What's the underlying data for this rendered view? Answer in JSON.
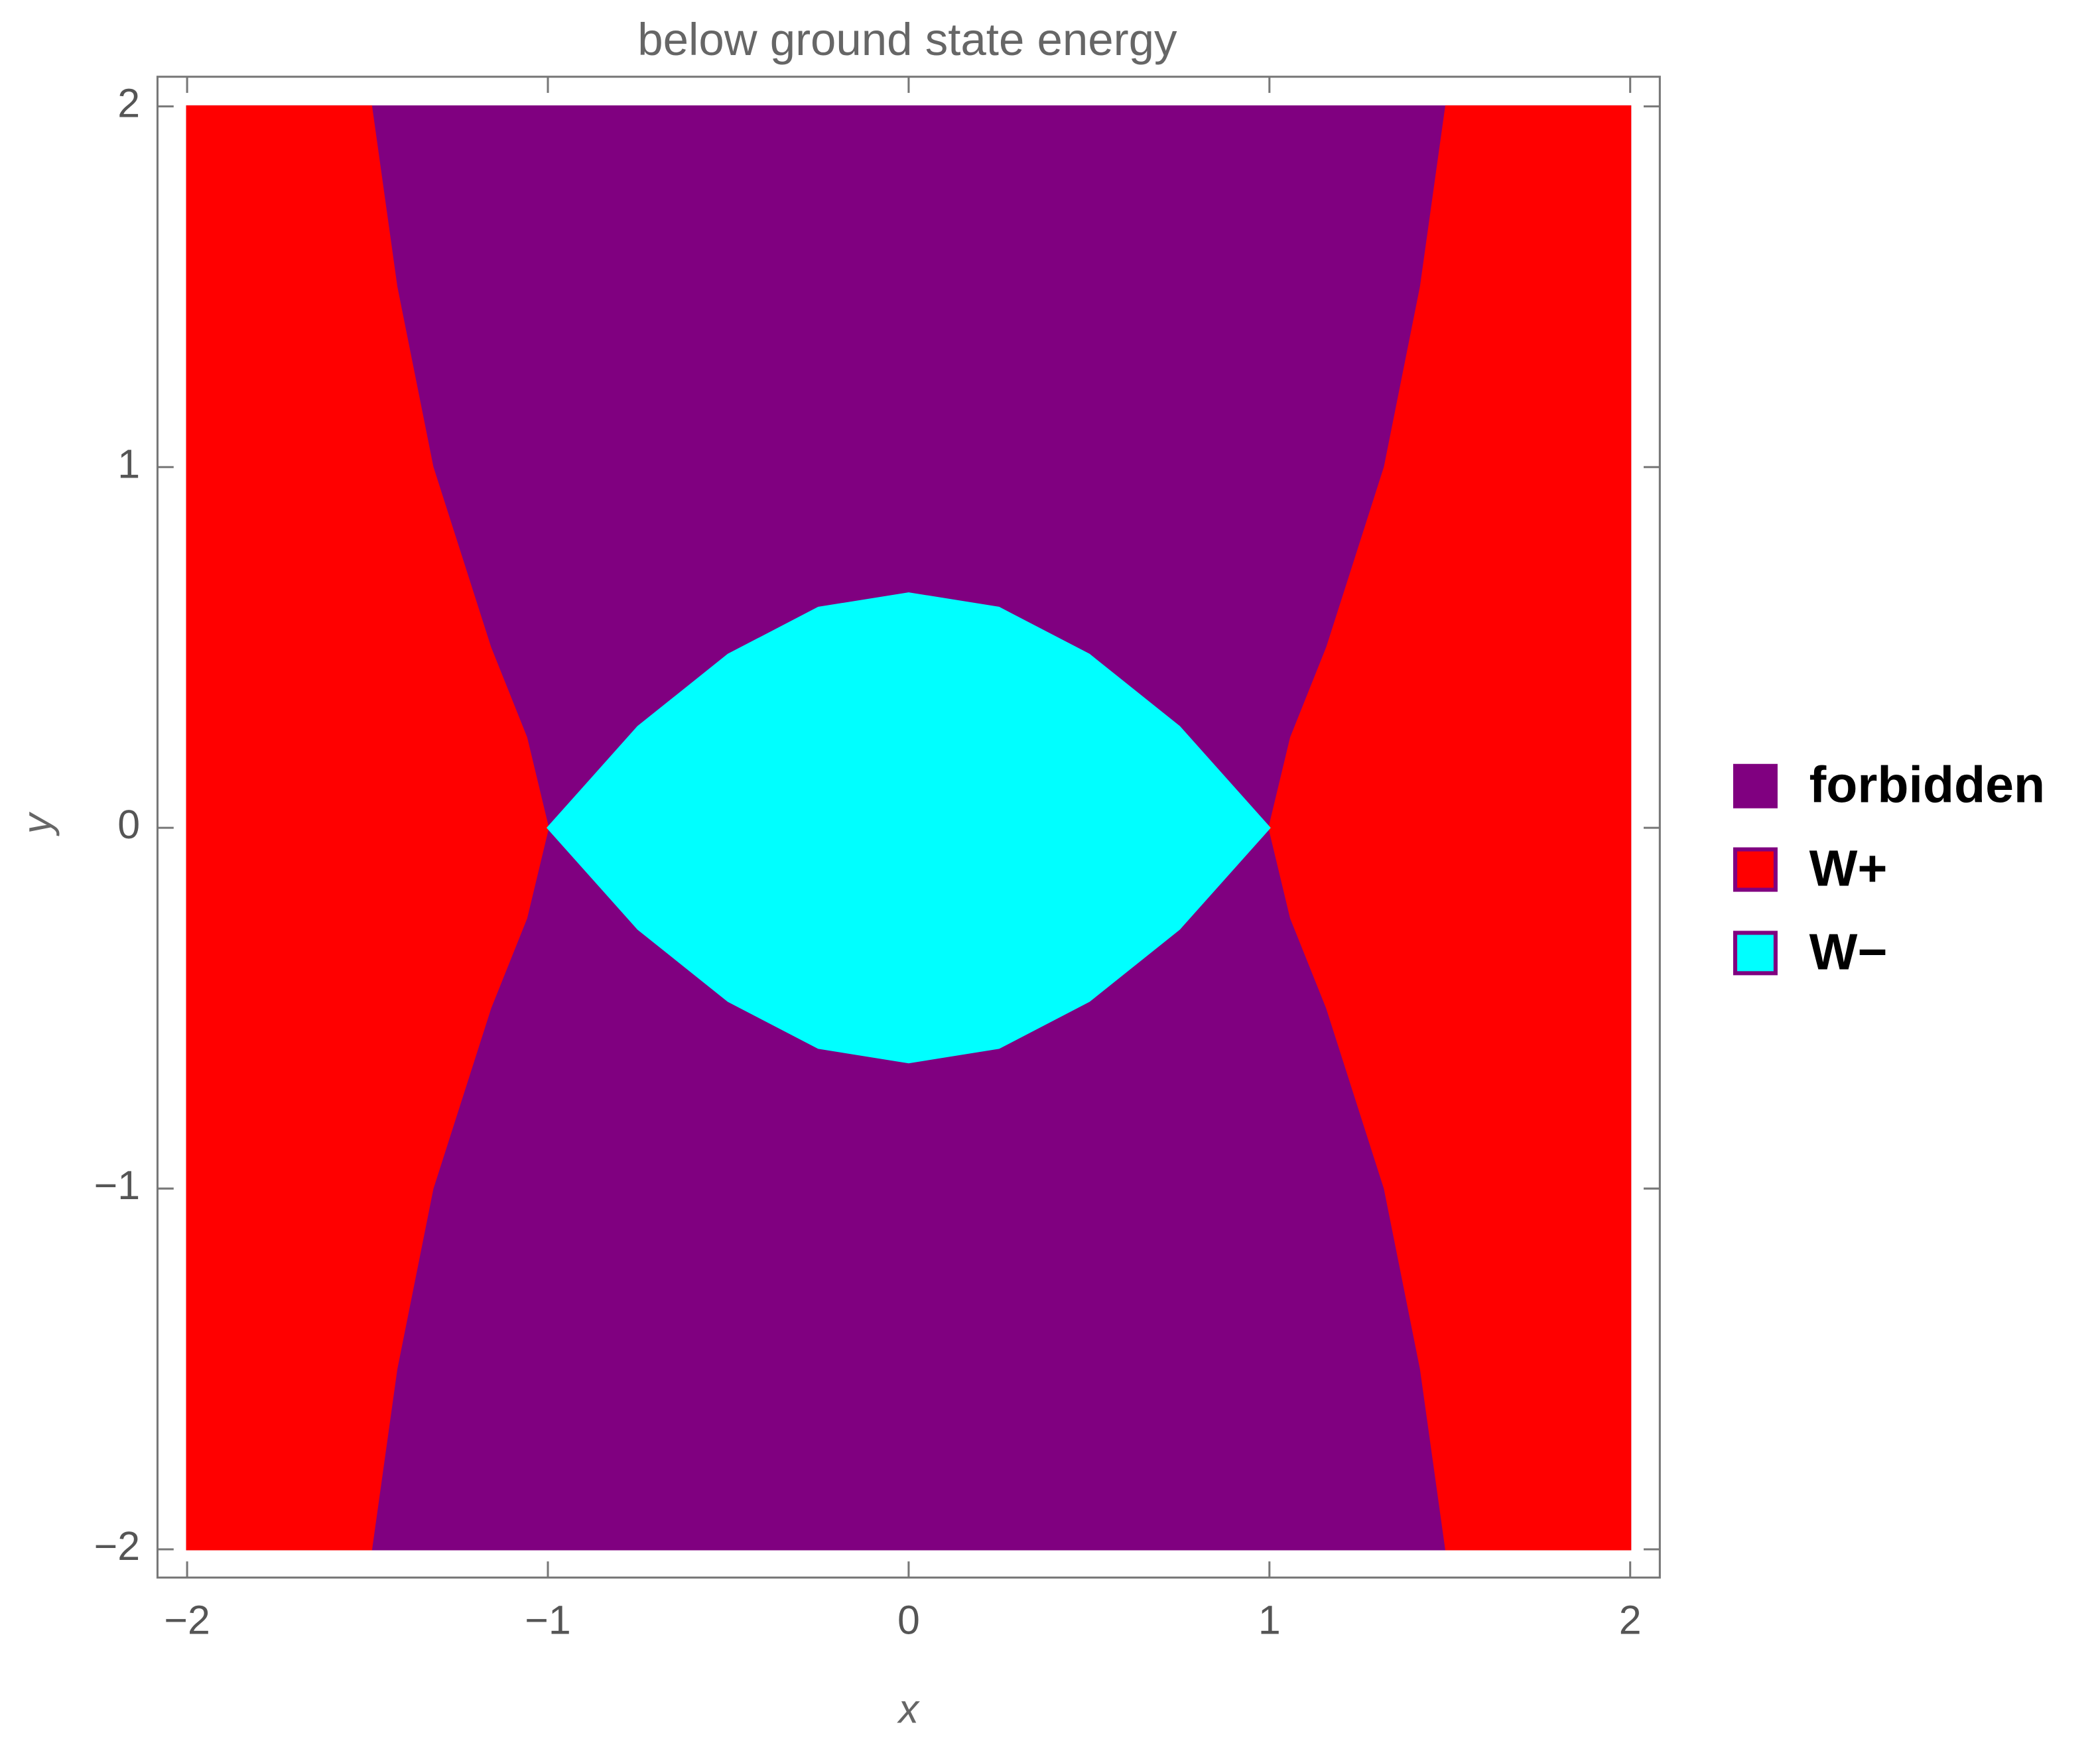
{
  "chart_data": {
    "type": "region",
    "title": "below ground state energy",
    "xlabel": "x",
    "ylabel": "y",
    "xlim": [
      -2,
      2
    ],
    "ylim": [
      -2,
      2
    ],
    "xticks": [
      {
        "value": -2,
        "label": "−2"
      },
      {
        "value": -1,
        "label": "−1"
      },
      0,
      1,
      2
    ],
    "yticks": [
      {
        "value": -2,
        "label": "−2"
      },
      {
        "value": -1,
        "label": "−1"
      },
      0,
      1,
      2
    ],
    "series": [
      {
        "name": "forbidden",
        "color": "#800080",
        "regions": [
          {
            "x": [
              -2,
              2,
              2,
              -2
            ],
            "y": [
              -2,
              -2,
              2,
              2
            ]
          }
        ]
      },
      {
        "name": "W+",
        "color": "#ff0000",
        "regions": [
          {
            "x": [
              2,
              1.49,
              1.42,
              1.32,
              1.16,
              1.06,
              1,
              1.06,
              1.16,
              1.32,
              1.42,
              1.49,
              2
            ],
            "y": [
              2,
              2,
              1.5,
              1,
              0.5,
              0.25,
              0,
              -0.25,
              -0.5,
              -1,
              -1.5,
              -2,
              -2
            ]
          },
          {
            "x": [
              -2,
              -1.49,
              -1.42,
              -1.32,
              -1.16,
              -1.06,
              -1,
              -1.06,
              -1.16,
              -1.32,
              -1.42,
              -1.49,
              -2
            ],
            "y": [
              2,
              2,
              1.5,
              1,
              0.5,
              0.25,
              0,
              -0.25,
              -0.5,
              -1,
              -1.5,
              -2,
              -2
            ]
          }
        ]
      },
      {
        "name": "W−",
        "color": "#00ffff",
        "regions": [
          {
            "x": [
              -1,
              -0.75,
              -0.5,
              -0.25,
              0,
              0.25,
              0.5,
              0.75,
              1,
              0.75,
              0.5,
              0.25,
              0,
              -0.25,
              -0.5,
              -0.75
            ],
            "y": [
              0,
              0.28,
              0.48,
              0.61,
              0.65,
              0.61,
              0.48,
              0.28,
              0,
              -0.28,
              -0.48,
              -0.61,
              -0.65,
              -0.61,
              -0.48,
              -0.28
            ]
          }
        ]
      }
    ]
  }
}
